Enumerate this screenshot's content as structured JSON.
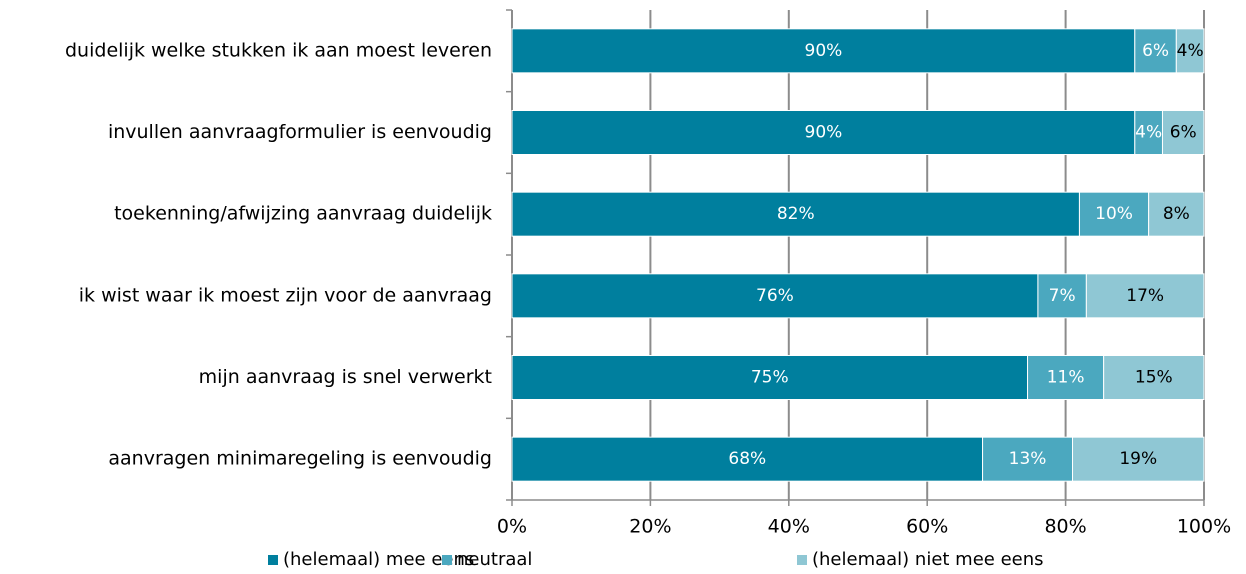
{
  "chart_data": {
    "type": "stacked_barh",
    "categories": [
      "duidelijk welke stukken ik aan moest leveren",
      "invullen aanvraagformulier is eenvoudig",
      "toekenning/afwijzing aanvraag duidelijk",
      "ik wist waar ik moest zijn voor de aanvraag",
      "mijn aanvraag is snel verwerkt",
      "aanvragen minimaregeling is eenvoudig"
    ],
    "series": [
      {
        "name": "(helemaal) mee eens",
        "color": "#007f9e",
        "label_color": "#ffffff",
        "values": [
          90,
          90,
          82,
          76,
          74.5,
          68
        ],
        "value_labels": [
          "90%",
          "90%",
          "82%",
          "76%",
          "75%",
          "68%"
        ]
      },
      {
        "name": "neutraal",
        "color": "#4ba8bf",
        "label_color": "#ffffff",
        "values": [
          6,
          4,
          10,
          7,
          11,
          13
        ],
        "value_labels": [
          "6%",
          "4%",
          "10%",
          "7%",
          "11%",
          "13%"
        ]
      },
      {
        "name": "(helemaal) niet mee eens",
        "color": "#8fc7d4",
        "label_color": "#000000",
        "values": [
          4,
          6,
          8,
          17,
          14.5,
          19
        ],
        "value_labels": [
          "4%",
          "6%",
          "8%",
          "17%",
          "15%",
          "19%"
        ]
      }
    ],
    "xlim": [
      0,
      100
    ],
    "xticks": [
      {
        "value": 0,
        "label": "0%"
      },
      {
        "value": 20,
        "label": "20%"
      },
      {
        "value": 40,
        "label": "40%"
      },
      {
        "value": 60,
        "label": "60%"
      },
      {
        "value": 80,
        "label": "80%"
      },
      {
        "value": 100,
        "label": "100%"
      }
    ],
    "grid": true,
    "legend": "bottom"
  }
}
